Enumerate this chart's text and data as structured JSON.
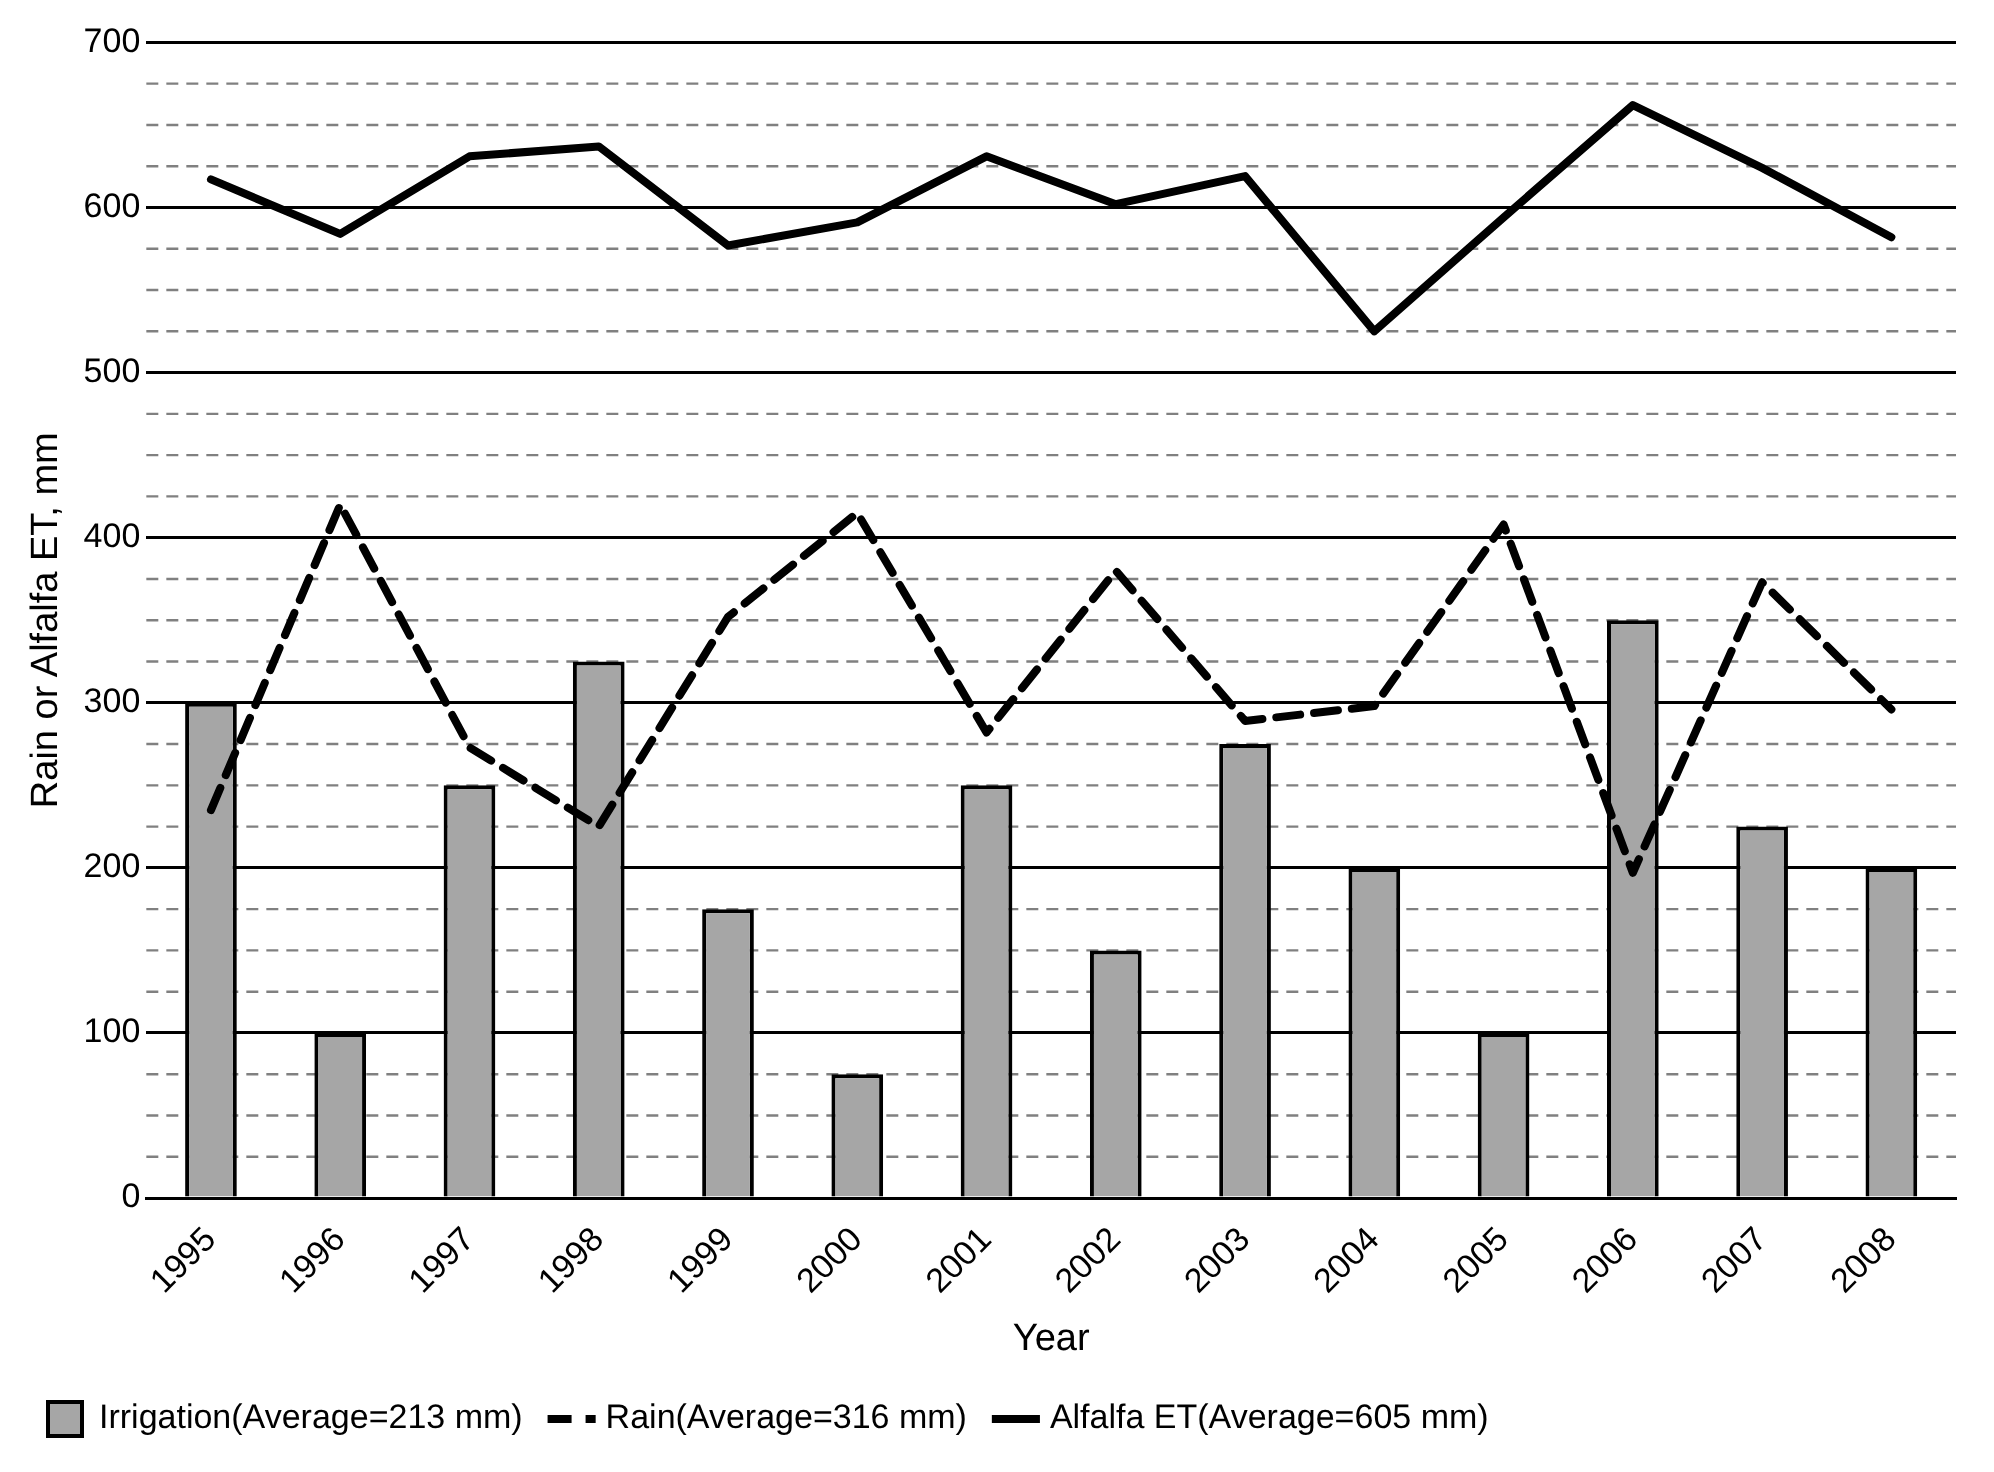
{
  "chart_data": {
    "type": "bar",
    "xlabel": "Year",
    "ylabel": "Rain or Alfalfa ET, mm",
    "categories": [
      "1995",
      "1996",
      "1997",
      "1998",
      "1999",
      "2000",
      "2001",
      "2002",
      "2003",
      "2004",
      "2005",
      "2006",
      "2007",
      "2008"
    ],
    "series": [
      {
        "name": "Irrigation(Average=213 mm)",
        "color": "#a6a6a6",
        "values": [
          300,
          100,
          250,
          325,
          175,
          75,
          250,
          150,
          275,
          200,
          100,
          350,
          225,
          200
        ]
      },
      {
        "name": "Rain(Average=316 mm)",
        "type": "line",
        "line_style": "dashed",
        "color": "#000000",
        "values": [
          235,
          420,
          273,
          225,
          352,
          415,
          282,
          380,
          289,
          298,
          408,
          197,
          373,
          296
        ]
      },
      {
        "name": "Alfalfa ET(Average=605 mm)",
        "type": "line",
        "line_style": "solid",
        "color": "#000000",
        "values": [
          617,
          584,
          631,
          637,
          577,
          591,
          631,
          602,
          619,
          525,
          594,
          662,
          624,
          582
        ]
      }
    ],
    "ylim": [
      0,
      700
    ],
    "yticks": [
      0,
      {
        "value": 25,
        "label": null
      },
      {
        "value": 50,
        "label": null
      },
      {
        "value": 75,
        "label": null
      },
      100,
      {
        "value": 125,
        "label": null
      },
      {
        "value": 150,
        "label": null
      },
      {
        "value": 175,
        "label": null
      },
      200,
      {
        "value": 225,
        "label": null
      },
      {
        "value": 250,
        "label": null
      },
      {
        "value": 275,
        "label": null
      },
      300,
      {
        "value": 325,
        "label": null
      },
      {
        "value": 350,
        "label": null
      },
      {
        "value": 375,
        "label": null
      },
      400,
      {
        "value": 425,
        "label": null
      },
      {
        "value": 450,
        "label": null
      },
      {
        "value": 475,
        "label": null
      },
      500,
      {
        "value": 525,
        "label": null
      },
      {
        "value": 550,
        "label": null
      },
      {
        "value": 575,
        "label": null
      },
      600,
      {
        "value": 625,
        "label": null
      },
      {
        "value": 650,
        "label": null
      },
      {
        "value": 675,
        "label": null
      },
      700
    ],
    "grid": "y",
    "legend": "bottom",
    "marker": "none"
  }
}
